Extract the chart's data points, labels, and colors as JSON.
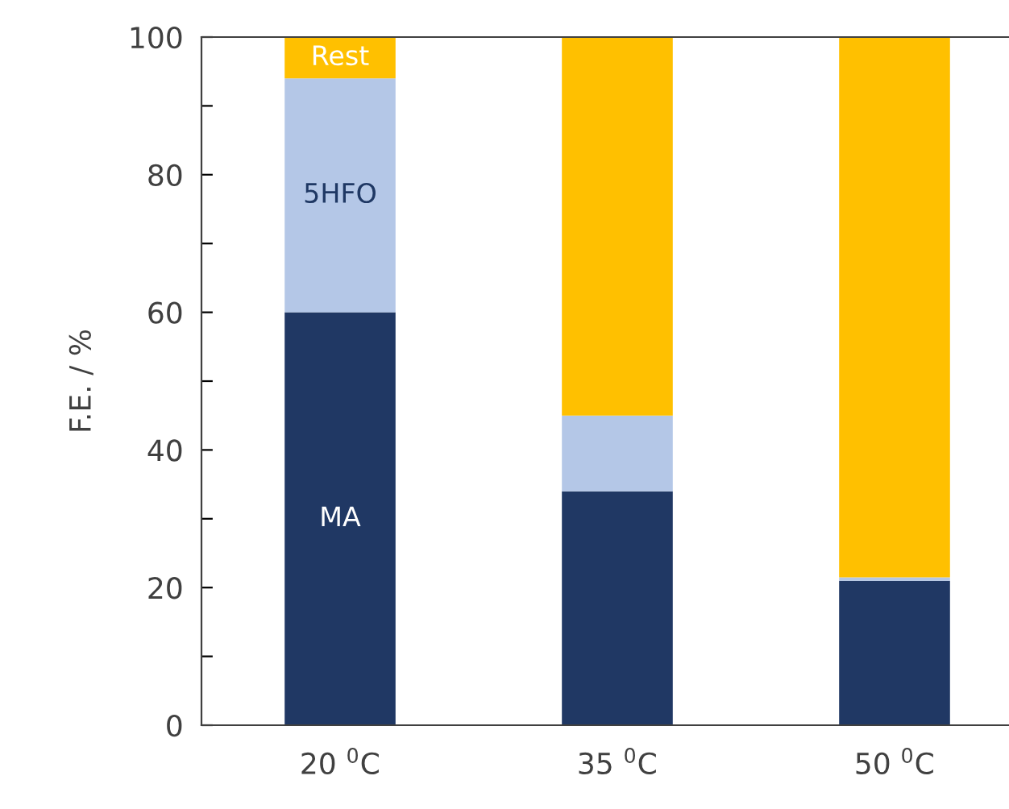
{
  "chart_data": {
    "type": "bar",
    "stacked": true,
    "ylabel": "F.E. / %",
    "categories": [
      "20 $^{0}$C",
      "35 $^{0}$C",
      "50 $^{0}$C"
    ],
    "series": [
      {
        "name": "MA",
        "color": "#203864",
        "values": [
          60,
          34,
          21
        ]
      },
      {
        "name": "5HFO",
        "color": "#b4c7e7",
        "values": [
          34,
          11,
          0.5
        ]
      },
      {
        "name": "Rest",
        "color": "#ffc000",
        "values": [
          6,
          55,
          78.5
        ]
      }
    ],
    "ylim": [
      0,
      100
    ],
    "yticks": [
      0,
      {
        "value": 10,
        "label": null
      },
      20,
      {
        "value": 30,
        "label": null
      },
      40,
      {
        "value": 50,
        "label": null
      },
      60,
      {
        "value": 70,
        "label": null
      },
      80,
      {
        "value": 90,
        "label": null
      },
      100
    ],
    "grid": false,
    "legend": false
  }
}
